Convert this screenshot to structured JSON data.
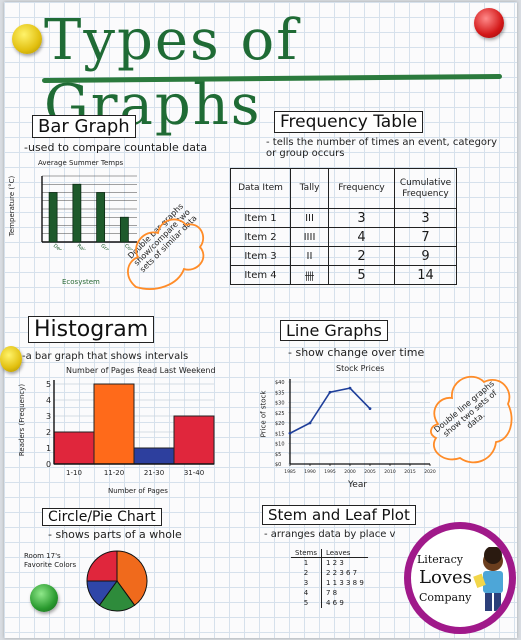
{
  "title": "Types of Graphs",
  "bar_graph": {
    "heading": "Bar Graph",
    "description": "-used to compare countable data",
    "chart_title": "Average Summer Temps",
    "ylabel": "Temperature (°C)",
    "xlabel": "Ecosystem",
    "note": "Double bar graphs show/compare two sets of similar data",
    "chart_data": {
      "type": "bar",
      "categories": [
        "Deciduous Forest",
        "Rainforest",
        "Grassland",
        "Coniferous Forest"
      ],
      "values": [
        6,
        7,
        6,
        3
      ],
      "ylim": [
        0,
        8
      ],
      "title": "Average Summer Temps",
      "xlabel": "Ecosystem",
      "ylabel": "Temperature (°C)"
    }
  },
  "frequency_table": {
    "heading": "Frequency Table",
    "description": "- tells the number of times an event, category or group occurs",
    "headers": [
      "Data Item",
      "Tally",
      "Frequency",
      "Cumulative Frequency"
    ],
    "rows": [
      [
        "Item 1",
        "III",
        "3",
        "3"
      ],
      [
        "Item 2",
        "IIII",
        "4",
        "7"
      ],
      [
        "Item 3",
        "II",
        "2",
        "9"
      ],
      [
        "Item 4",
        "卌",
        "5",
        "14"
      ]
    ]
  },
  "histogram": {
    "heading": "Histogram",
    "description": "-a bar graph that shows intervals",
    "chart_title": "Number of Pages Read Last Weekend",
    "ylabel": "Readers (Frequency)",
    "xlabel": "Number of Pages",
    "chart_data": {
      "type": "bar",
      "categories": [
        "1-10",
        "11-20",
        "21-30",
        "31-40"
      ],
      "values": [
        2,
        5,
        1,
        3
      ],
      "yticks": [
        "0",
        "1",
        "2",
        "3",
        "4",
        "5"
      ],
      "ylim": [
        0,
        5
      ],
      "title": "Number of Pages Read Last Weekend",
      "xlabel": "Number of Pages",
      "ylabel": "Readers (Frequency)",
      "colors": [
        "#e0263c",
        "#ff6a1a",
        "#2d3f9e",
        "#e0263c"
      ]
    }
  },
  "line_graph": {
    "heading": "Line Graphs",
    "description": "- show change over time",
    "chart_title": "Stock Prices",
    "ylabel": "Price of stock",
    "xlabel": "Year",
    "note": "Double line graphs show two sets of data.",
    "chart_data": {
      "type": "line",
      "x": [
        1985,
        1990,
        1995,
        2000,
        2005
      ],
      "xticks": [
        "1985",
        "1990",
        "1995",
        "2000",
        "2005",
        "2010",
        "2015",
        "2020"
      ],
      "y": [
        15,
        20,
        35,
        37,
        27
      ],
      "yticks": [
        "$0",
        "$5",
        "$10",
        "$15",
        "$20",
        "$25",
        "$30",
        "$35",
        "$40"
      ],
      "ylim": [
        0,
        40
      ],
      "title": "Stock Prices",
      "xlabel": "Year",
      "ylabel": "Price of stock"
    }
  },
  "pie_chart": {
    "heading": "Circle/Pie Chart",
    "description": "- shows parts of a whole",
    "chart_title": "Room 17's Favorite Colors",
    "chart_data": {
      "type": "pie",
      "values": [
        40,
        20,
        15,
        25
      ],
      "colors": [
        "#f06a1c",
        "#2e8b3b",
        "#2f46a8",
        "#e0263c"
      ]
    }
  },
  "stem_leaf": {
    "heading": "Stem and Leaf Plot",
    "description": "- arranges data by place v",
    "headers": [
      "Stems",
      "Leaves"
    ],
    "rows": [
      [
        "1",
        "1 2 3"
      ],
      [
        "2",
        "2 2 3 6 7"
      ],
      [
        "3",
        "1 1 3 3 8 9"
      ],
      [
        "4",
        "7 8"
      ],
      [
        "5",
        "4 6 9"
      ]
    ]
  },
  "logo": {
    "line1": "Literacy",
    "line2": "Loves",
    "line3": "Company"
  },
  "colors": {
    "title_green": "#1f6b35",
    "orange_note": "#ff8c28",
    "logo_purple": "#a0198a"
  }
}
